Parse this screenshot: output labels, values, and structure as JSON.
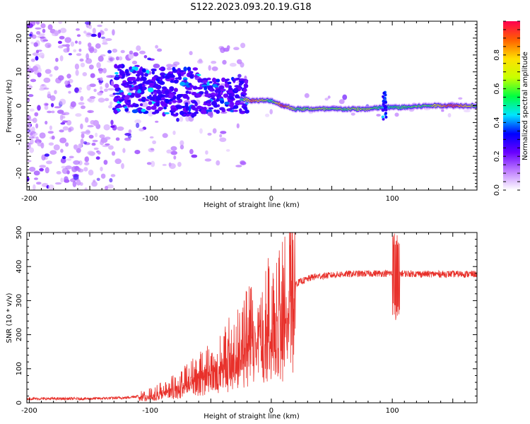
{
  "title": "S122.2023.093.20.19.G18",
  "chart_data": [
    {
      "type": "heatmap",
      "title": "S122.2023.093.20.19.G18",
      "xlabel": "Height of straight line (km)",
      "ylabel": "Frequency (Hz)",
      "xlim": [
        -202,
        170
      ],
      "ylim": [
        -25,
        25
      ],
      "x_ticks": [
        -200,
        -100,
        0,
        100
      ],
      "y_ticks": [
        -20,
        -10,
        0,
        10,
        20
      ],
      "colorbar": {
        "label": "Normalized spectral amplitude",
        "range": [
          0,
          1
        ],
        "ticks": [
          "0.0",
          "0.2",
          "0.4",
          "0.6",
          "0.8"
        ],
        "colors": [
          "#ffffff",
          "#c080ff",
          "#6a00ff",
          "#0000ff",
          "#00e5ff",
          "#00ff40",
          "#c8ff00",
          "#ffe000",
          "#ff6000",
          "#ff0050"
        ]
      },
      "ridge": [
        {
          "x": -130,
          "y": 4.5,
          "amp": 0.35
        },
        {
          "x": -110,
          "y": 5.5,
          "amp": 0.3
        },
        {
          "x": -95,
          "y": 7,
          "amp": 0.3
        },
        {
          "x": -80,
          "y": 4,
          "amp": 0.25
        },
        {
          "x": -60,
          "y": 3.5,
          "amp": 0.3
        },
        {
          "x": -40,
          "y": 3,
          "amp": 0.35
        },
        {
          "x": -25,
          "y": 2,
          "amp": 0.5
        },
        {
          "x": -15,
          "y": 1.5,
          "amp": 0.9
        },
        {
          "x": 0,
          "y": 1.5,
          "amp": 0.5
        },
        {
          "x": 10,
          "y": 0,
          "amp": 0.95
        },
        {
          "x": 20,
          "y": -1,
          "amp": 0.6
        },
        {
          "x": 40,
          "y": -1,
          "amp": 0.65
        },
        {
          "x": 60,
          "y": -1,
          "amp": 0.6
        },
        {
          "x": 80,
          "y": -1,
          "amp": 0.65
        },
        {
          "x": 92,
          "y": -0.5,
          "amp": 0.5
        },
        {
          "x": 110,
          "y": -0.5,
          "amp": 0.6
        },
        {
          "x": 130,
          "y": 0,
          "amp": 0.6
        },
        {
          "x": 150,
          "y": 0,
          "amp": 0.95
        },
        {
          "x": 170,
          "y": 0,
          "amp": 0.6
        }
      ]
    },
    {
      "type": "line",
      "xlabel": "Height of straight line (km)",
      "ylabel": "SNR (10 * v/v)",
      "xlim": [
        -202,
        170
      ],
      "ylim": [
        0,
        500
      ],
      "x_ticks": [
        -200,
        -100,
        0,
        100
      ],
      "y_ticks": [
        0,
        100,
        200,
        300,
        400,
        500
      ],
      "color": "#e8302a",
      "profile": [
        {
          "x": -202,
          "y": 12
        },
        {
          "x": -150,
          "y": 12
        },
        {
          "x": -120,
          "y": 15
        },
        {
          "x": -100,
          "y": 25
        },
        {
          "x": -80,
          "y": 50
        },
        {
          "x": -60,
          "y": 90
        },
        {
          "x": -40,
          "y": 130
        },
        {
          "x": -20,
          "y": 200
        },
        {
          "x": -5,
          "y": 250
        },
        {
          "x": 10,
          "y": 300
        },
        {
          "x": 20,
          "y": 350
        },
        {
          "x": 35,
          "y": 370
        },
        {
          "x": 60,
          "y": 378
        },
        {
          "x": 90,
          "y": 380
        },
        {
          "x": 100,
          "y": 380
        },
        {
          "x": 130,
          "y": 378
        },
        {
          "x": 170,
          "y": 378
        }
      ],
      "spike": {
        "x": 103,
        "max": 500,
        "min": 240
      }
    }
  ]
}
